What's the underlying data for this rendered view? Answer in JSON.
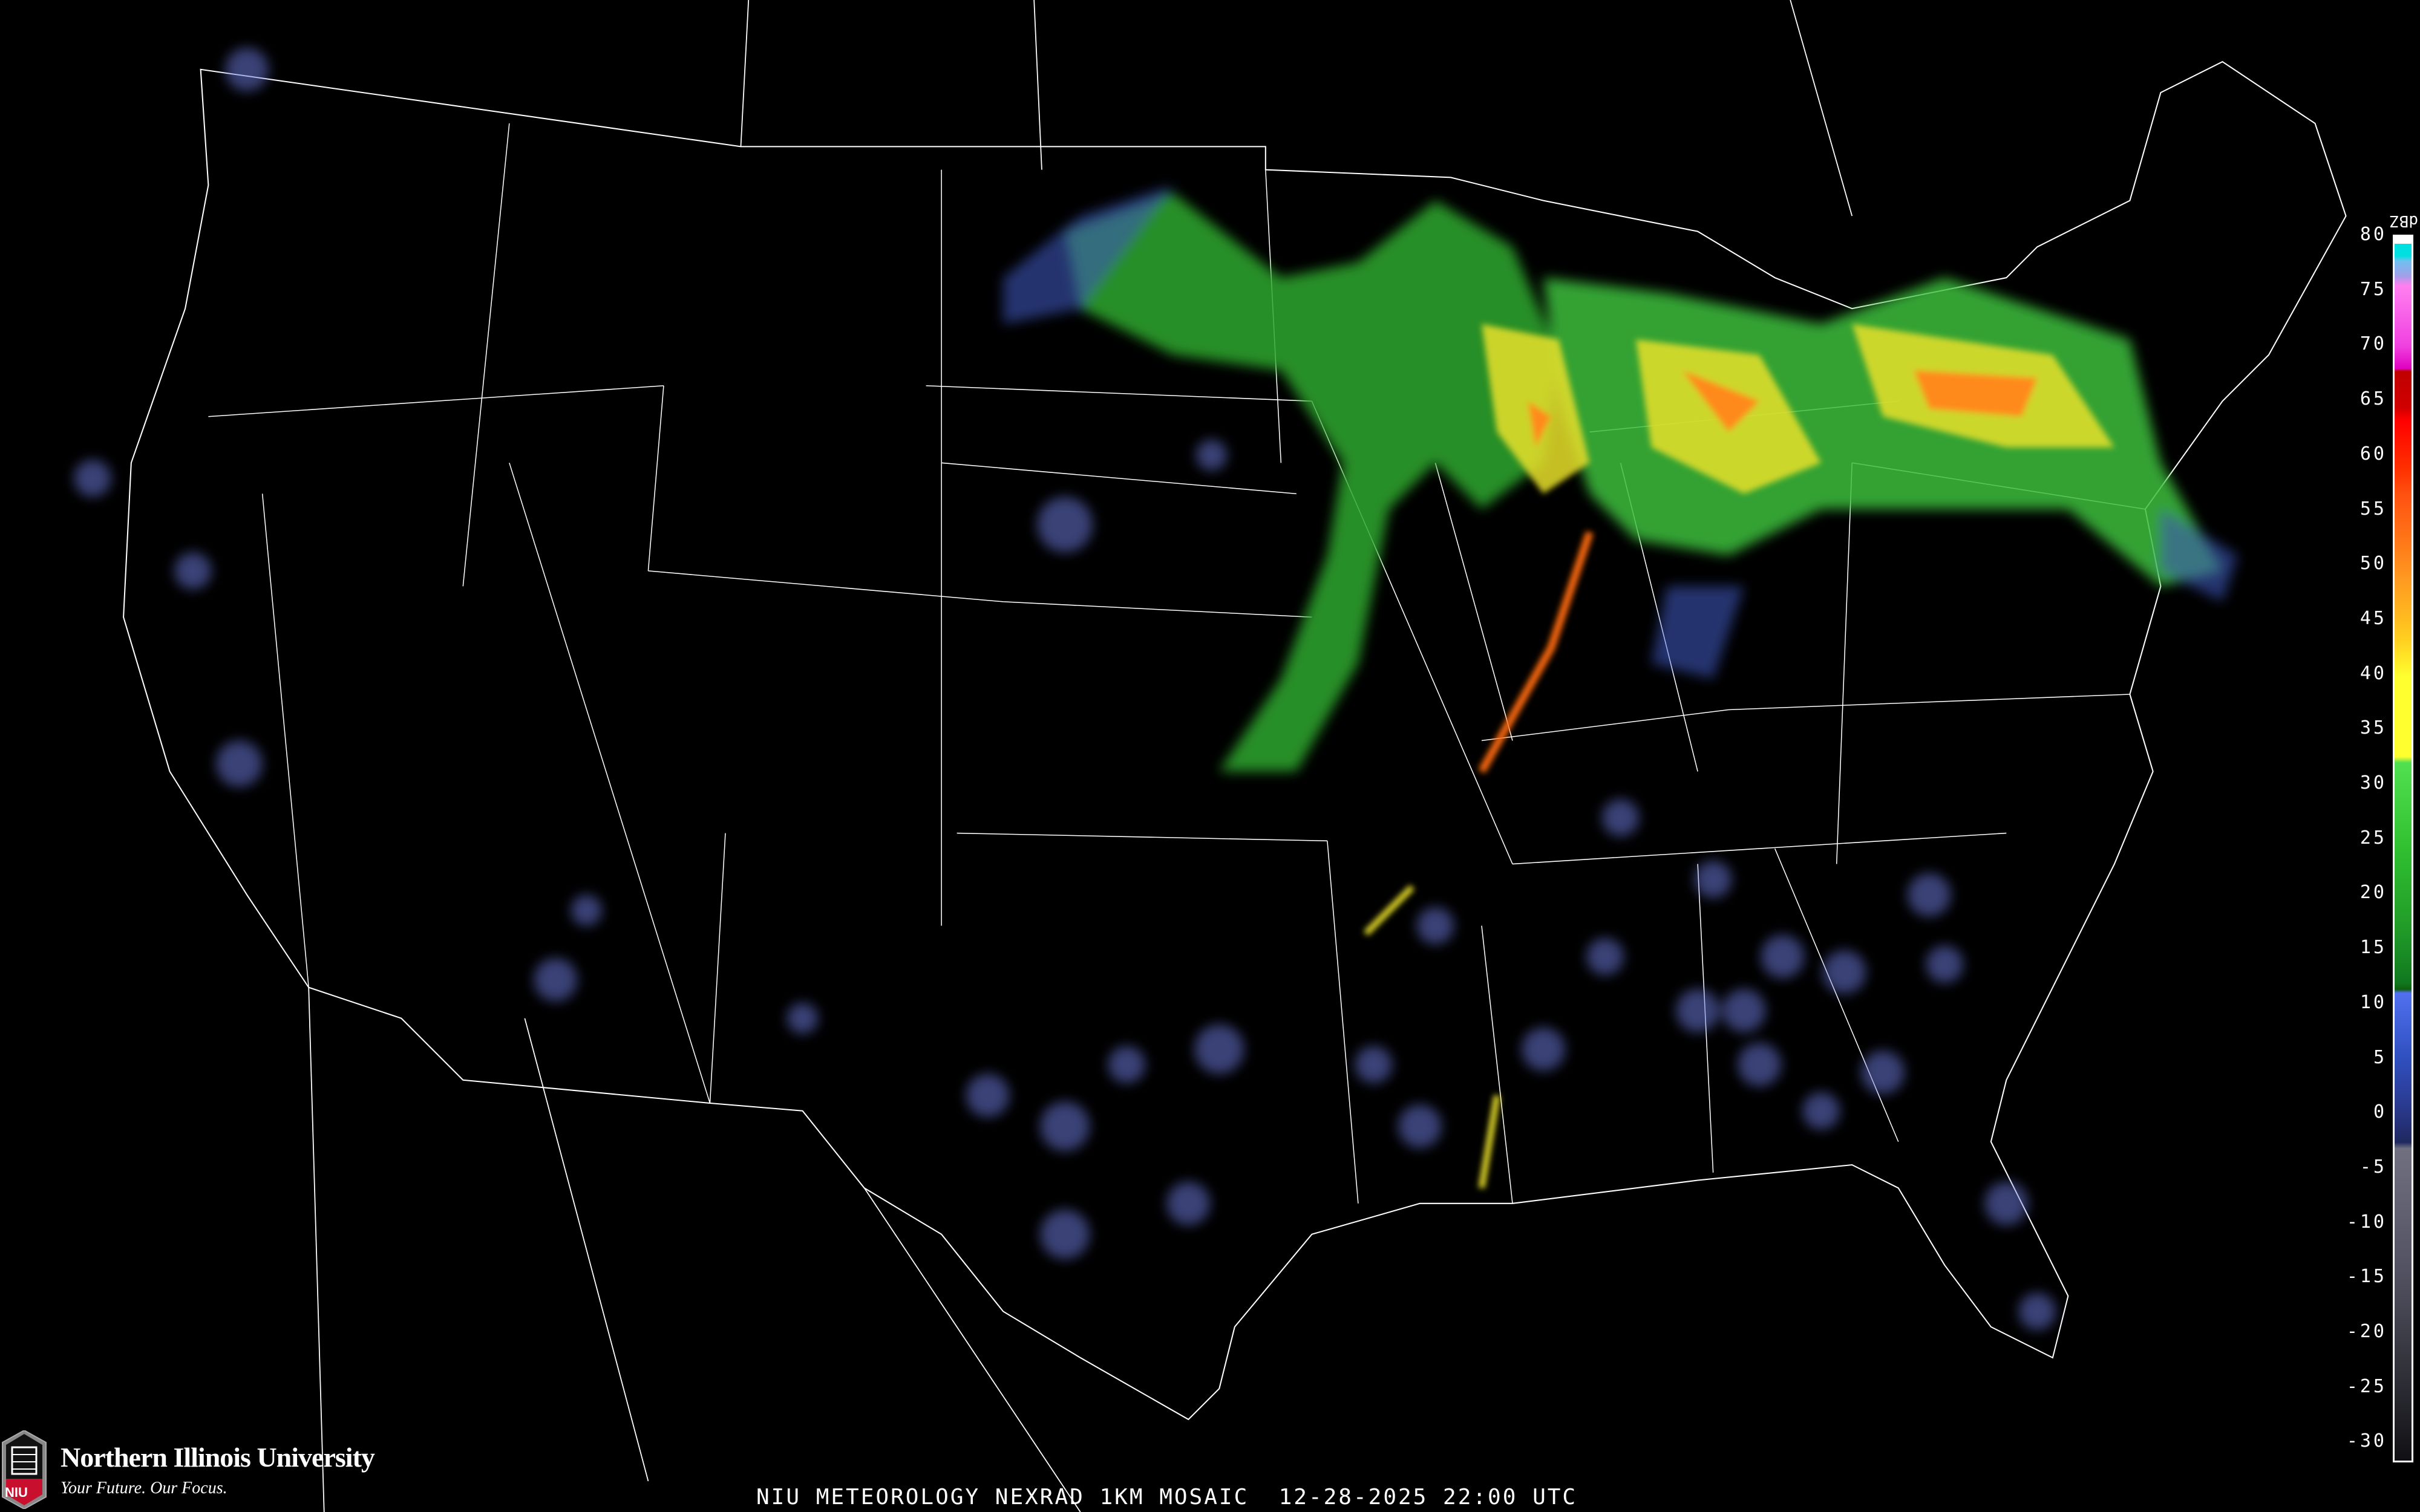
{
  "map": {
    "title": "NIU METEOROLOGY NEXRAD 1KM MOSAIC",
    "datetime": "12-28-2025 22:00 UTC",
    "background_color": "#000000",
    "boundary_color": "#ffffff",
    "road_color": "#8b4a2b"
  },
  "legend": {
    "unit": "dBZ",
    "labels": [
      "80",
      "75",
      "70",
      "65",
      "60",
      "55",
      "50",
      "45",
      "40",
      "35",
      "30",
      "25",
      "20",
      "15",
      "10",
      "5",
      "0",
      "-5",
      "-10",
      "-15",
      "-20",
      "-25",
      "-30"
    ]
  },
  "logo": {
    "name": "Northern Illinois University",
    "tagline": "Your Future. Our Focus.",
    "abbr": "NIU",
    "brand_color": "#c8102e"
  }
}
